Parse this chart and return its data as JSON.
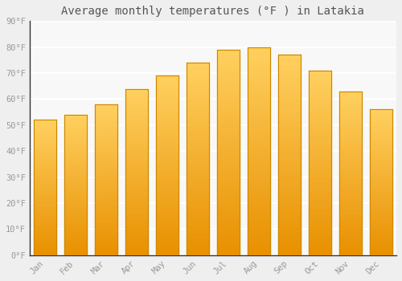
{
  "title": "Average monthly temperatures (°F ) in Latakia",
  "months": [
    "Jan",
    "Feb",
    "Mar",
    "Apr",
    "May",
    "Jun",
    "Jul",
    "Aug",
    "Sep",
    "Oct",
    "Nov",
    "Dec"
  ],
  "values": [
    52,
    54,
    58,
    64,
    69,
    74,
    79,
    80,
    77,
    71,
    63,
    56
  ],
  "bar_color_top": "#FFD060",
  "bar_color_bottom": "#E89000",
  "bar_color_mid": "#FFA820",
  "background_color": "#EFEFEF",
  "plot_bg_color": "#F8F8F8",
  "grid_color": "#FFFFFF",
  "ylim": [
    0,
    90
  ],
  "yticks": [
    0,
    10,
    20,
    30,
    40,
    50,
    60,
    70,
    80,
    90
  ],
  "ytick_labels": [
    "0°F",
    "10°F",
    "20°F",
    "30°F",
    "40°F",
    "50°F",
    "60°F",
    "70°F",
    "80°F",
    "90°F"
  ],
  "title_fontsize": 10,
  "tick_fontsize": 7.5,
  "font_color": "#999999",
  "spine_color": "#333333",
  "bar_width": 0.72,
  "bar_edge_color": "#CC8800",
  "bar_gap_color": "#CCCCCC"
}
